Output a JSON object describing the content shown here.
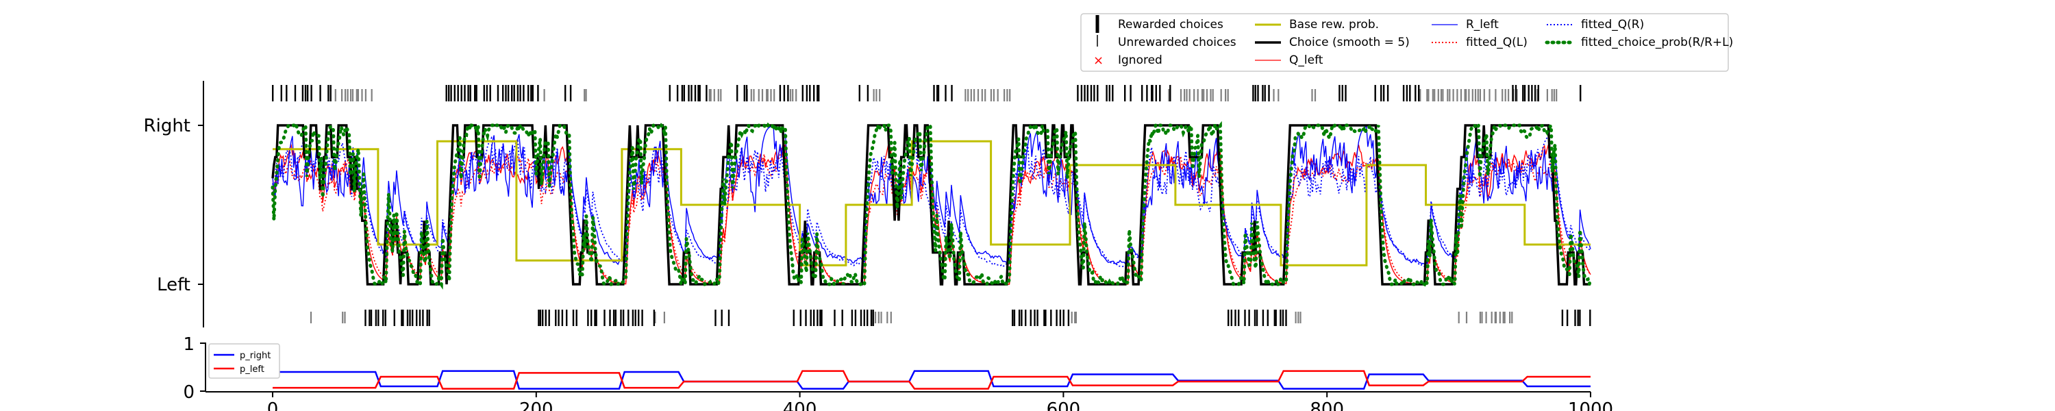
{
  "colors": {
    "rewarded": "#000000",
    "unrewarded": "#808080",
    "ignored": "#ff0000",
    "base_prob": "#bfbf00",
    "choice": "#000000",
    "q_left": "#ff0000",
    "r_left": "#0000ff",
    "fitted_q_l": "#ff0000",
    "fitted_q_r": "#0000ff",
    "fitted_choice_prob": "#008000",
    "p_right": "#0000ff",
    "p_left": "#ff0000"
  },
  "chart_data": [
    {
      "type": "line",
      "title": "",
      "xlabel": "",
      "ylabel": "",
      "xlim": [
        0,
        1000
      ],
      "ylim": [
        -0.35,
        1.28
      ],
      "y_tick_values": [
        0,
        1
      ],
      "yticklabels": [
        "Left",
        "Right"
      ],
      "legend_position": "top-right, above plot",
      "legend": [
        [
          "Rewarded choices",
          "Base rew. prob.",
          "R_left",
          "fitted_Q(R)"
        ],
        [
          "Unrewarded choices",
          "Choice (smooth = 5)",
          "fitted_Q(L)",
          "fitted_choice_prob(R/R+L)"
        ],
        [
          "Ignored",
          "Q_left",
          "",
          ""
        ]
      ],
      "trial_marks": {
        "right_rewarded": [
          [
            0,
            45
          ],
          [
            130,
            205
          ],
          [
            222,
            225
          ],
          [
            278,
            282
          ],
          [
            300,
            330
          ],
          [
            352,
            360
          ],
          [
            385,
            392
          ],
          [
            402,
            415
          ],
          [
            445,
            455
          ],
          [
            500,
            525
          ],
          [
            610,
            680
          ],
          [
            740,
            755
          ],
          [
            808,
            815
          ],
          [
            835,
            870
          ],
          [
            940,
            960
          ],
          [
            992,
            998
          ]
        ],
        "right_unrewarded": [
          [
            45,
            75
          ],
          [
            205,
            205
          ],
          [
            235,
            238
          ],
          [
            330,
            340
          ],
          [
            360,
            380
          ],
          [
            392,
            398
          ],
          [
            455,
            460
          ],
          [
            525,
            560
          ],
          [
            680,
            725
          ],
          [
            755,
            762
          ],
          [
            785,
            790
          ],
          [
            870,
            975
          ]
        ],
        "left_rewarded": [
          [
            70,
            120
          ],
          [
            200,
            290
          ],
          [
            335,
            345
          ],
          [
            395,
            455
          ],
          [
            560,
            605
          ],
          [
            725,
            775
          ],
          [
            975,
            1000
          ]
        ],
        "left_unrewarded": [
          [
            28,
            30
          ],
          [
            52,
            55
          ],
          [
            290,
            300
          ],
          [
            455,
            470
          ],
          [
            605,
            610
          ],
          [
            775,
            780
          ],
          [
            900,
            905
          ],
          [
            915,
            940
          ]
        ]
      },
      "base_prob_segments": [
        {
          "x": [
            0,
            80
          ],
          "y": 0.85
        },
        {
          "x": [
            80,
            125
          ],
          "y": 0.25
        },
        {
          "x": [
            125,
            185
          ],
          "y": 0.9
        },
        {
          "x": [
            185,
            265
          ],
          "y": 0.15
        },
        {
          "x": [
            265,
            310
          ],
          "y": 0.85
        },
        {
          "x": [
            310,
            400
          ],
          "y": 0.5
        },
        {
          "x": [
            400,
            435
          ],
          "y": 0.12
        },
        {
          "x": [
            435,
            485
          ],
          "y": 0.5
        },
        {
          "x": [
            485,
            545
          ],
          "y": 0.9
        },
        {
          "x": [
            545,
            605
          ],
          "y": 0.25
        },
        {
          "x": [
            605,
            685
          ],
          "y": 0.75
        },
        {
          "x": [
            685,
            765
          ],
          "y": 0.5
        },
        {
          "x": [
            765,
            830
          ],
          "y": 0.12
        },
        {
          "x": [
            830,
            875
          ],
          "y": 0.75
        },
        {
          "x": [
            875,
            950
          ],
          "y": 0.5
        },
        {
          "x": [
            950,
            1000
          ],
          "y": 0.25
        }
      ],
      "choice_blocks": [
        {
          "x": [
            0,
            70
          ],
          "y": 1
        },
        {
          "x": [
            70,
            135
          ],
          "y": 0
        },
        {
          "x": [
            135,
            225
          ],
          "y": 1
        },
        {
          "x": [
            225,
            270
          ],
          "y": 0
        },
        {
          "x": [
            270,
            300
          ],
          "y": 1
        },
        {
          "x": [
            300,
            340
          ],
          "y": 0
        },
        {
          "x": [
            340,
            390
          ],
          "y": 1
        },
        {
          "x": [
            390,
            450
          ],
          "y": 0
        },
        {
          "x": [
            450,
            500
          ],
          "y": 1
        },
        {
          "x": [
            500,
            560
          ],
          "y": 0
        },
        {
          "x": [
            560,
            610
          ],
          "y": 1
        },
        {
          "x": [
            610,
            660
          ],
          "y": 0
        },
        {
          "x": [
            660,
            720
          ],
          "y": 1
        },
        {
          "x": [
            720,
            770
          ],
          "y": 0
        },
        {
          "x": [
            770,
            840
          ],
          "y": 1
        },
        {
          "x": [
            840,
            900
          ],
          "y": 0
        },
        {
          "x": [
            900,
            975
          ],
          "y": 1
        },
        {
          "x": [
            975,
            1000
          ],
          "y": 0
        }
      ]
    },
    {
      "type": "line",
      "title": "",
      "xlim": [
        0,
        1000
      ],
      "ylim": [
        0,
        1
      ],
      "yticklabels": [
        "0",
        "1"
      ],
      "xticklabels": [
        "0",
        "200",
        "400",
        "600",
        "800",
        "1000"
      ],
      "legend_position": "upper-left",
      "legend": [
        "p_right",
        "p_left"
      ],
      "series": [
        {
          "name": "p_right",
          "x": [
            0,
            78,
            82,
            125,
            129,
            183,
            187,
            263,
            267,
            308,
            312,
            398,
            402,
            433,
            437,
            483,
            487,
            543,
            547,
            603,
            607,
            683,
            687,
            763,
            767,
            828,
            832,
            873,
            877,
            948,
            952,
            1000
          ],
          "y": [
            0.4,
            0.4,
            0.1,
            0.1,
            0.42,
            0.42,
            0.05,
            0.05,
            0.4,
            0.4,
            0.2,
            0.2,
            0.05,
            0.05,
            0.2,
            0.2,
            0.42,
            0.42,
            0.1,
            0.1,
            0.35,
            0.35,
            0.22,
            0.22,
            0.05,
            0.05,
            0.35,
            0.35,
            0.22,
            0.22,
            0.1,
            0.1
          ]
        },
        {
          "name": "p_left",
          "x": [
            0,
            78,
            82,
            125,
            129,
            183,
            187,
            263,
            267,
            308,
            312,
            398,
            402,
            433,
            437,
            483,
            487,
            543,
            547,
            603,
            607,
            683,
            687,
            763,
            767,
            828,
            832,
            873,
            877,
            948,
            952,
            1000
          ],
          "y": [
            0.07,
            0.07,
            0.3,
            0.3,
            0.05,
            0.05,
            0.38,
            0.38,
            0.07,
            0.07,
            0.2,
            0.2,
            0.42,
            0.42,
            0.2,
            0.2,
            0.05,
            0.05,
            0.3,
            0.3,
            0.12,
            0.12,
            0.2,
            0.2,
            0.42,
            0.42,
            0.12,
            0.12,
            0.2,
            0.2,
            0.3,
            0.3
          ]
        }
      ]
    }
  ]
}
